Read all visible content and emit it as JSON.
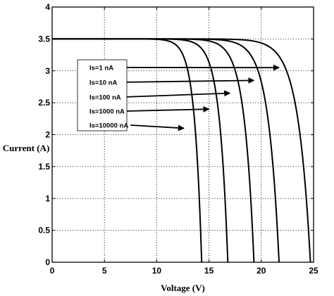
{
  "chart_data": {
    "type": "line",
    "xlabel": "Voltage (V)",
    "ylabel": "Current (A)",
    "xlim": [
      0,
      25
    ],
    "ylim": [
      0,
      4
    ],
    "xticks": [
      0,
      5,
      10,
      15,
      20,
      25
    ],
    "yticks": [
      0,
      0.5,
      1,
      1.5,
      2,
      2.5,
      3,
      3.5,
      4
    ],
    "xtick_labels": [
      "0",
      "5",
      "10",
      "15",
      "20",
      "25"
    ],
    "ytick_labels": [
      "0",
      "0.5",
      "1",
      "1.5",
      "2",
      "2.5",
      "3",
      "3.5",
      "4"
    ],
    "grid": true,
    "legend_placement": "upper-left",
    "series": [
      {
        "name": "Is=1 nA",
        "isc": 3.5,
        "voc": 24.7
      },
      {
        "name": "Is=10 nA",
        "isc": 3.5,
        "voc": 21.7
      },
      {
        "name": "Is=100 nA",
        "isc": 3.5,
        "voc": 19.3
      },
      {
        "name": "Is=1000 nA",
        "isc": 3.5,
        "voc": 16.8
      },
      {
        "name": "Is=10000 nA",
        "isc": 3.5,
        "voc": 14.3
      }
    ],
    "annotations": [
      {
        "label": "Is=1 nA",
        "arrow_to": [
          21.7,
          3.05
        ]
      },
      {
        "label": "Is=10 nA",
        "arrow_to": [
          19.3,
          2.85
        ]
      },
      {
        "label": "Is=100 nA",
        "arrow_to": [
          17.0,
          2.65
        ]
      },
      {
        "label": "Is=1000 nA",
        "arrow_to": [
          15.0,
          2.4
        ]
      },
      {
        "label": "Is=10000 nA",
        "arrow_to": [
          12.6,
          2.1
        ]
      }
    ]
  }
}
